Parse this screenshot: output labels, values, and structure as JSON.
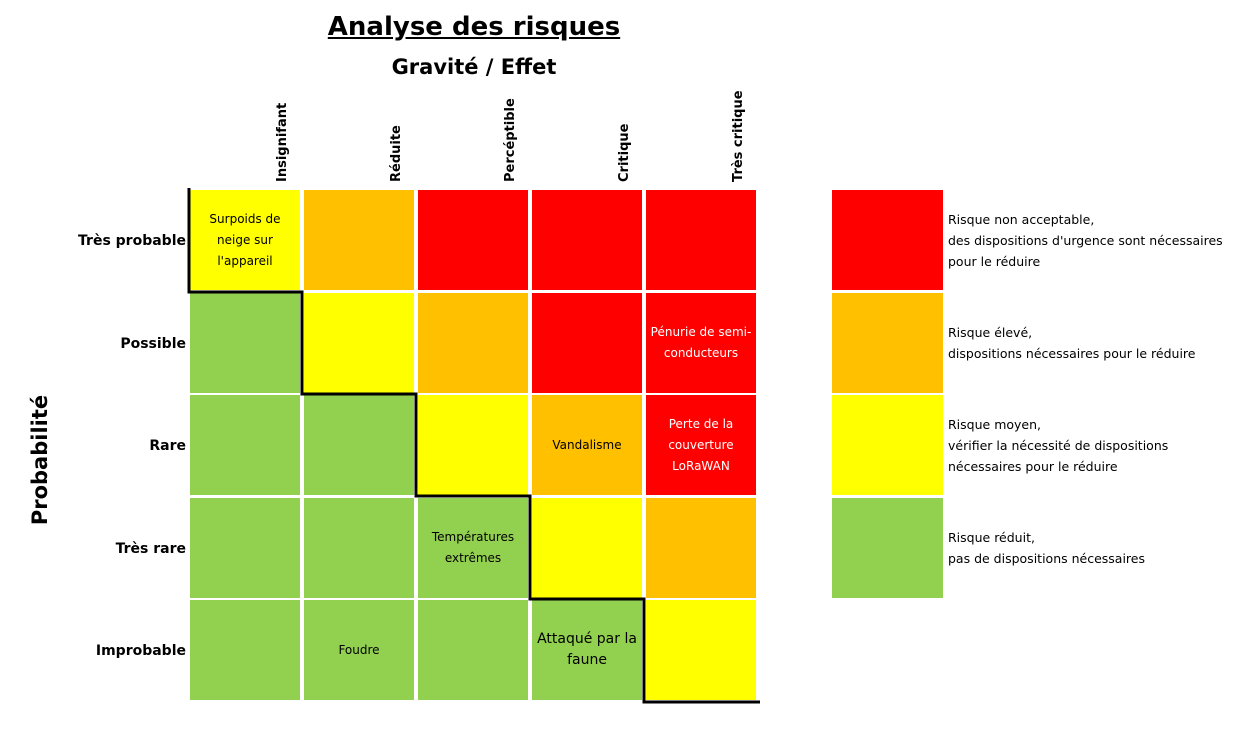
{
  "title": "Analyse des risques",
  "subtitle": "Gravité / Effet",
  "y_axis_label": "Probabilité",
  "columns": [
    "Insignifant",
    "Réduite",
    "Percéptible",
    "Critique",
    "Très critique"
  ],
  "rows": [
    "Très probable",
    "Possible",
    "Rare",
    "Très rare",
    "Improbable"
  ],
  "colors": {
    "red": "#ff0000",
    "orange": "#ffc000",
    "yellow": "#ffff00",
    "green": "#92d050"
  },
  "grid": [
    [
      "yellow",
      "orange",
      "red",
      "red",
      "red"
    ],
    [
      "green",
      "yellow",
      "orange",
      "red",
      "red"
    ],
    [
      "green",
      "green",
      "yellow",
      "orange",
      "red"
    ],
    [
      "green",
      "green",
      "green",
      "yellow",
      "orange"
    ],
    [
      "green",
      "green",
      "green",
      "green",
      "yellow"
    ]
  ],
  "risks": {
    "surpoids": "Surpoids de neige sur l'appareil",
    "penurie": "Pénurie de semi-conducteurs",
    "vandalisme": "Vandalisme",
    "lorawan": "Perte de la couverture LoRaWAN",
    "temperatures": "Températures extrêmes",
    "foudre": "Foudre",
    "faune": "Attaqué par la faune"
  },
  "legend": [
    {
      "color": "red",
      "lines": [
        "Risque non acceptable,",
        "des dispositions d'urgence sont nécessaires",
        "pour le réduire"
      ]
    },
    {
      "color": "orange",
      "lines": [
        "Risque élevé,",
        "dispositions nécessaires pour le réduire"
      ]
    },
    {
      "color": "yellow",
      "lines": [
        "Risque moyen,",
        "vérifier la nécessité de dispositions",
        "nécessaires pour le réduire"
      ]
    },
    {
      "color": "green",
      "lines": [
        "Risque réduit,",
        "pas de dispositions nécessaires"
      ]
    }
  ]
}
